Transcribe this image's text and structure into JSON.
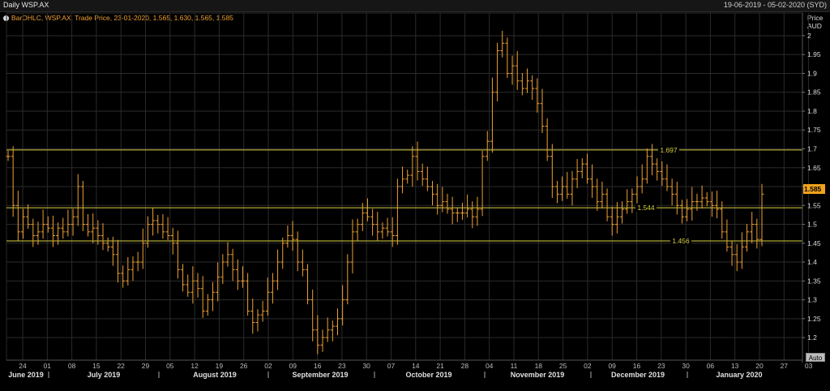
{
  "header": {
    "title": "Daily WSP.AX",
    "date_range": "19-06-2019 - 05-02-2020 (SYD)"
  },
  "legend": {
    "text": "BarOHLC, WSP.AX, Trade Price, 23-01-2020, 1.565, 1.630, 1.565, 1.585"
  },
  "axis": {
    "price_label": "Price",
    "currency_label": "AUD",
    "auto_label": "Auto",
    "last_price_tag": "1.585"
  },
  "colors": {
    "background": "#000000",
    "grid": "#2b2b2b",
    "bars": "#f0a030",
    "hlines": "#d8d040",
    "axis_text": "#dddddd"
  },
  "chart_data": {
    "type": "ohlc_bar",
    "title": "Daily WSP.AX",
    "ylabel": "Price AUD",
    "ylim": [
      1.14,
      2.03
    ],
    "yticks": [
      1.2,
      1.25,
      1.3,
      1.35,
      1.4,
      1.45,
      1.5,
      1.55,
      1.6,
      1.65,
      1.7,
      1.75,
      1.8,
      1.85,
      1.9,
      1.95,
      2
    ],
    "ytick_labels": [
      "1.2",
      "1.25",
      "1.3",
      "1.35",
      "1.4",
      "1.45",
      "1.5",
      "1.55",
      "1.6",
      "1.65",
      "1.7",
      "1.75",
      "1.8",
      "1.85",
      "1.9",
      "1.95",
      "2"
    ],
    "day_ticks": [
      "24",
      "01",
      "08",
      "15",
      "22",
      "29",
      "05",
      "12",
      "19",
      "26",
      "02",
      "09",
      "16",
      "23",
      "30",
      "07",
      "14",
      "21",
      "28",
      "04",
      "11",
      "18",
      "25",
      "02",
      "09",
      "16",
      "23",
      "30",
      "06",
      "13",
      "20",
      "27",
      "03"
    ],
    "months": [
      "June 2019",
      "July 2019",
      "August 2019",
      "September 2019",
      "October 2019",
      "November 2019",
      "December 2019",
      "January 2020"
    ],
    "horizontal_lines": [
      {
        "value": 1.697,
        "label": "1.697"
      },
      {
        "value": 1.544,
        "label": "1.544"
      },
      {
        "value": 1.456,
        "label": "1.456"
      }
    ],
    "last_price": 1.585,
    "close_series": [
      1.68,
      1.55,
      1.48,
      1.52,
      1.5,
      1.47,
      1.48,
      1.5,
      1.49,
      1.47,
      1.49,
      1.48,
      1.5,
      1.52,
      1.6,
      1.5,
      1.48,
      1.49,
      1.47,
      1.45,
      1.44,
      1.42,
      1.37,
      1.35,
      1.38,
      1.4,
      1.4,
      1.45,
      1.5,
      1.51,
      1.5,
      1.48,
      1.47,
      1.45,
      1.38,
      1.34,
      1.32,
      1.35,
      1.33,
      1.27,
      1.3,
      1.32,
      1.36,
      1.4,
      1.42,
      1.38,
      1.35,
      1.35,
      1.27,
      1.24,
      1.26,
      1.27,
      1.32,
      1.35,
      1.4,
      1.45,
      1.47,
      1.46,
      1.4,
      1.38,
      1.3,
      1.22,
      1.18,
      1.2,
      1.22,
      1.23,
      1.25,
      1.3,
      1.4,
      1.48,
      1.5,
      1.53,
      1.52,
      1.5,
      1.48,
      1.49,
      1.48,
      1.47,
      1.6,
      1.62,
      1.63,
      1.68,
      1.64,
      1.62,
      1.6,
      1.58,
      1.55,
      1.56,
      1.54,
      1.53,
      1.53,
      1.53,
      1.54,
      1.52,
      1.54,
      1.68,
      1.72,
      1.85,
      1.96,
      1.98,
      1.9,
      1.92,
      1.88,
      1.86,
      1.88,
      1.86,
      1.82,
      1.76,
      1.68,
      1.6,
      1.58,
      1.6,
      1.58,
      1.62,
      1.64,
      1.66,
      1.62,
      1.6,
      1.56,
      1.58,
      1.52,
      1.5,
      1.52,
      1.54,
      1.56,
      1.58,
      1.6,
      1.62,
      1.68,
      1.66,
      1.64,
      1.62,
      1.6,
      1.58,
      1.55,
      1.52,
      1.54,
      1.56,
      1.56,
      1.57,
      1.56,
      1.55,
      1.54,
      1.48,
      1.44,
      1.42,
      1.4,
      1.44,
      1.48,
      1.5,
      1.46,
      1.58
    ]
  }
}
